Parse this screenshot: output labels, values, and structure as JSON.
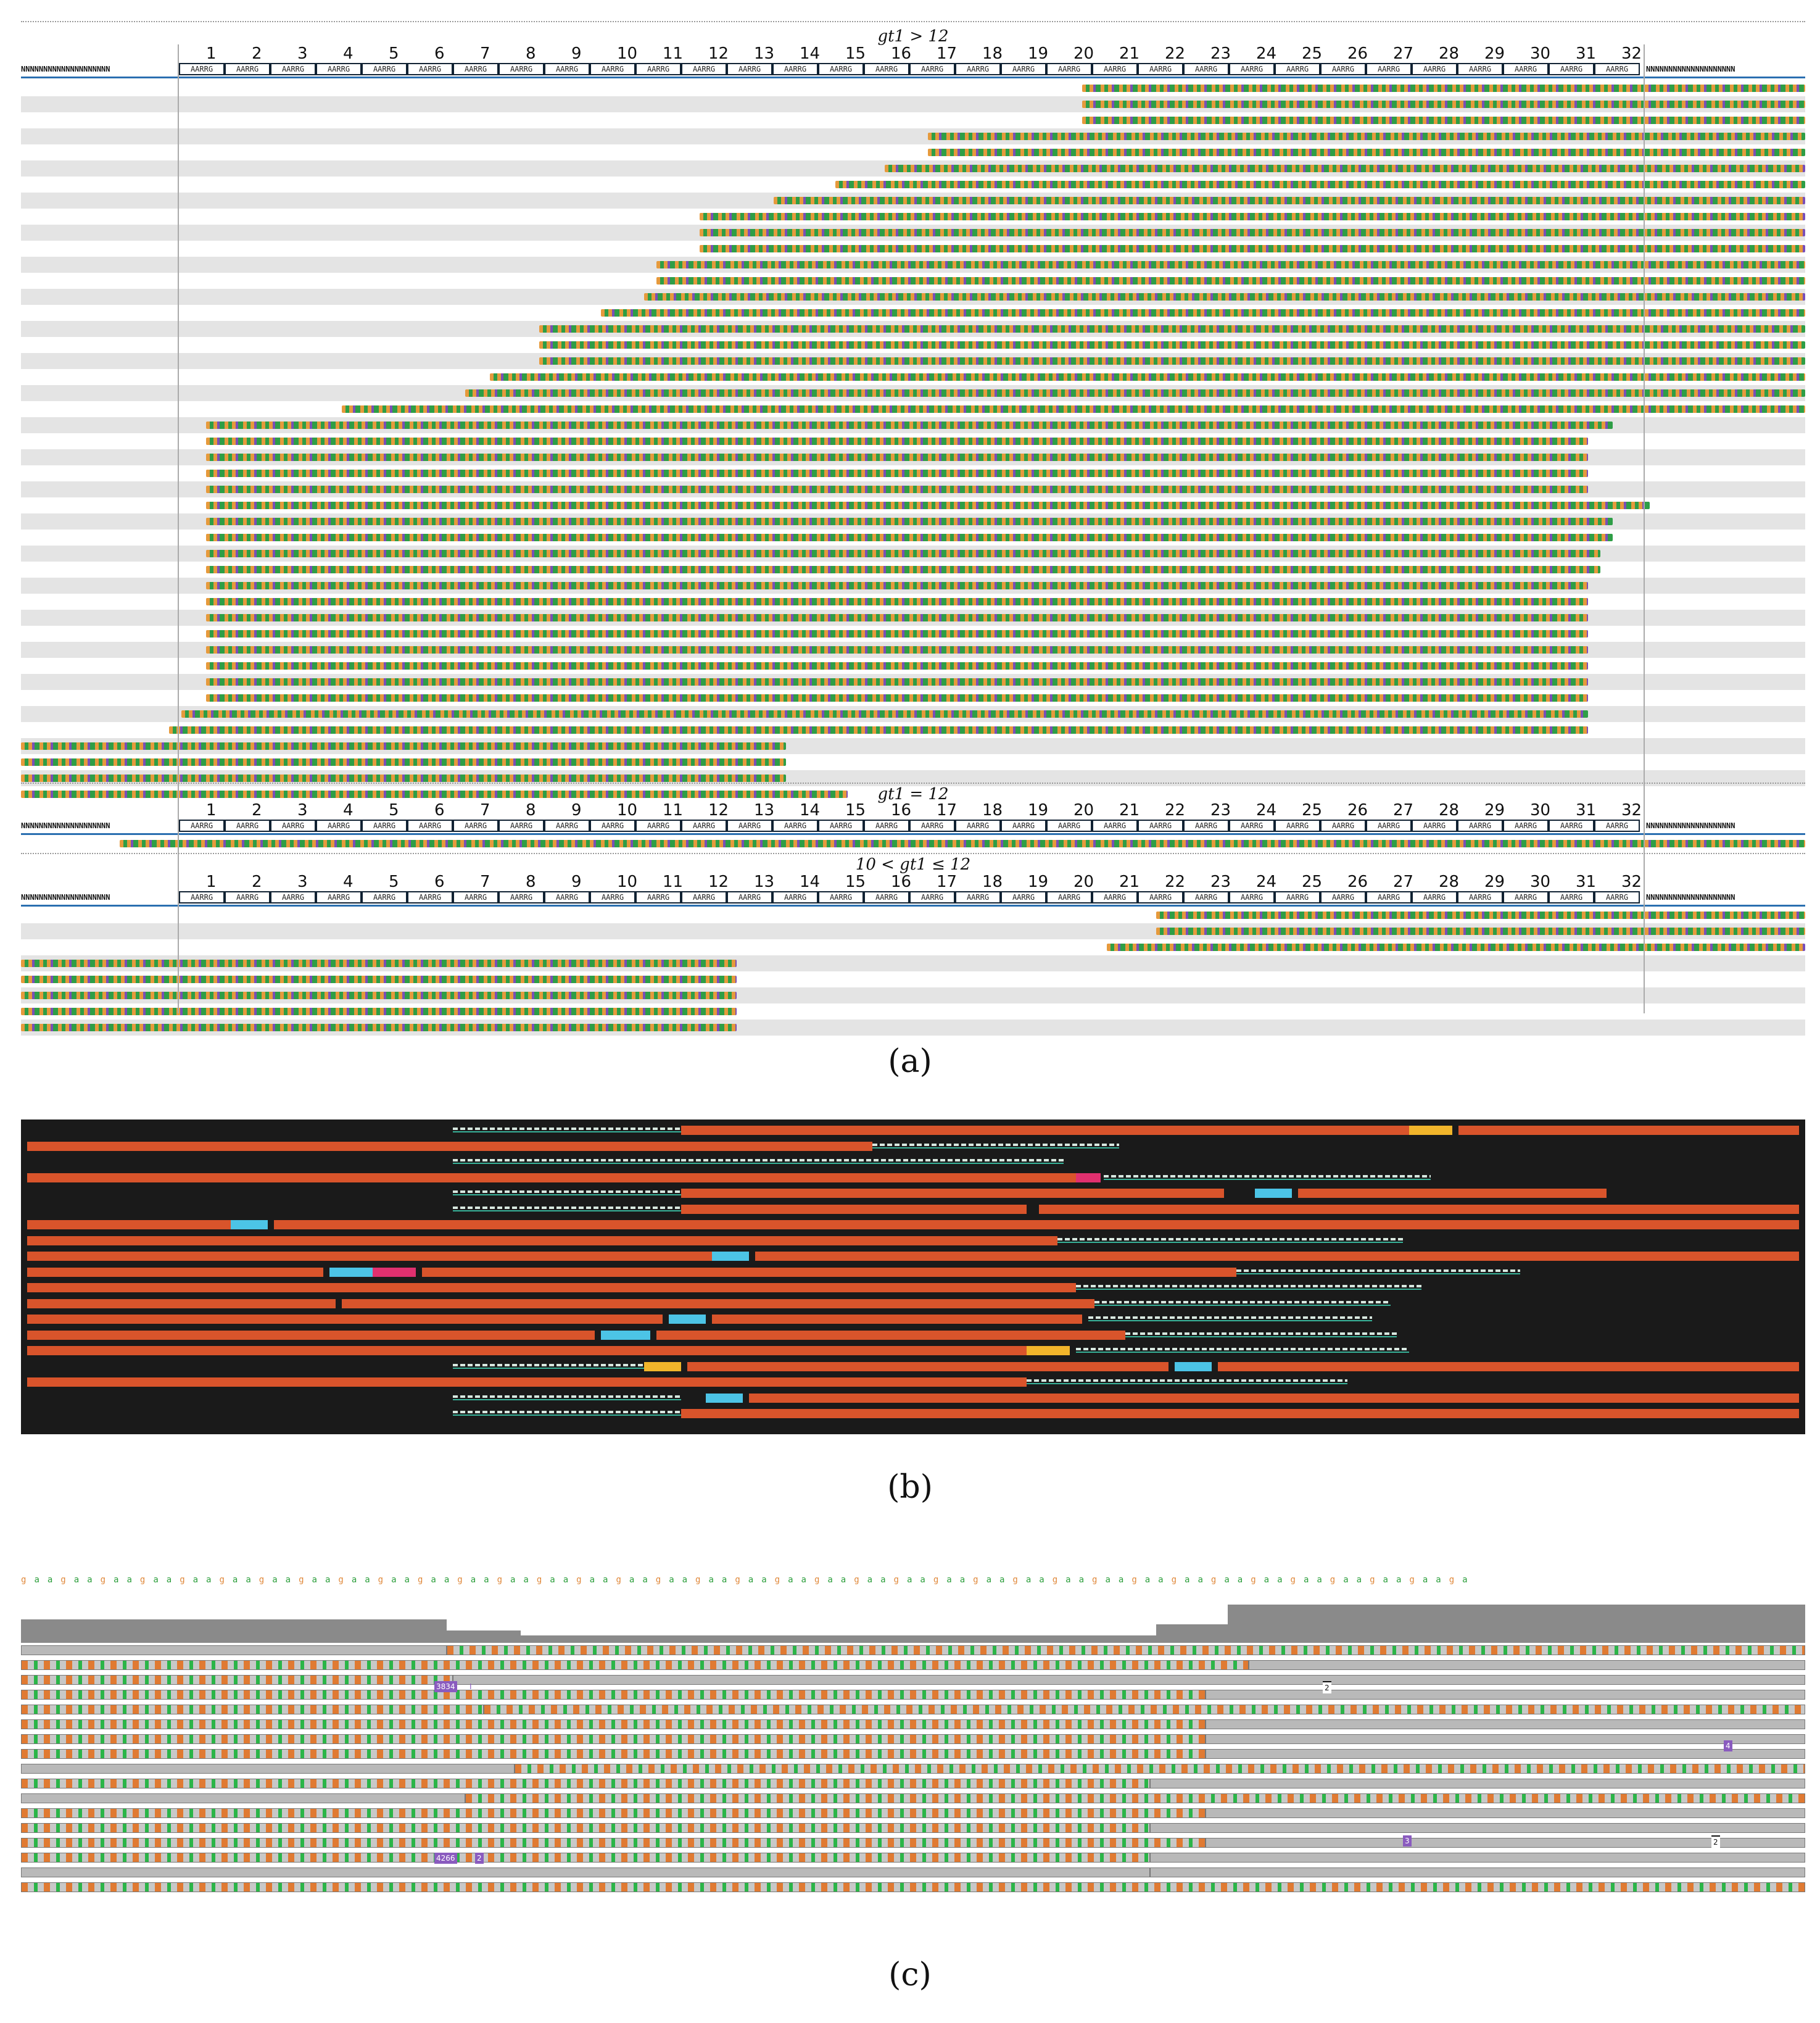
{
  "panel_a": {
    "sections": [
      {
        "title": "gt1 > 12"
      },
      {
        "title": "gt1 = 12"
      },
      {
        "title": "10 < gt1 ≤ 12"
      }
    ],
    "repeat_numbers": [
      "1",
      "2",
      "3",
      "4",
      "5",
      "6",
      "7",
      "8",
      "9",
      "10",
      "11",
      "12",
      "13",
      "14",
      "15",
      "16",
      "17",
      "18",
      "19",
      "20",
      "21",
      "22",
      "23",
      "24",
      "25",
      "26",
      "27",
      "28",
      "29",
      "30",
      "31",
      "32"
    ],
    "unit_label": "AARRG",
    "flank_label": "NNNNNNNNNNNNNNNNNNNN"
  },
  "captions": {
    "a": "(a)",
    "b": "(b)",
    "c": "(c)"
  },
  "panel_c": {
    "tags": [
      "3834",
      "I",
      "4266",
      "2",
      "2",
      "2",
      "4",
      "3"
    ]
  }
}
